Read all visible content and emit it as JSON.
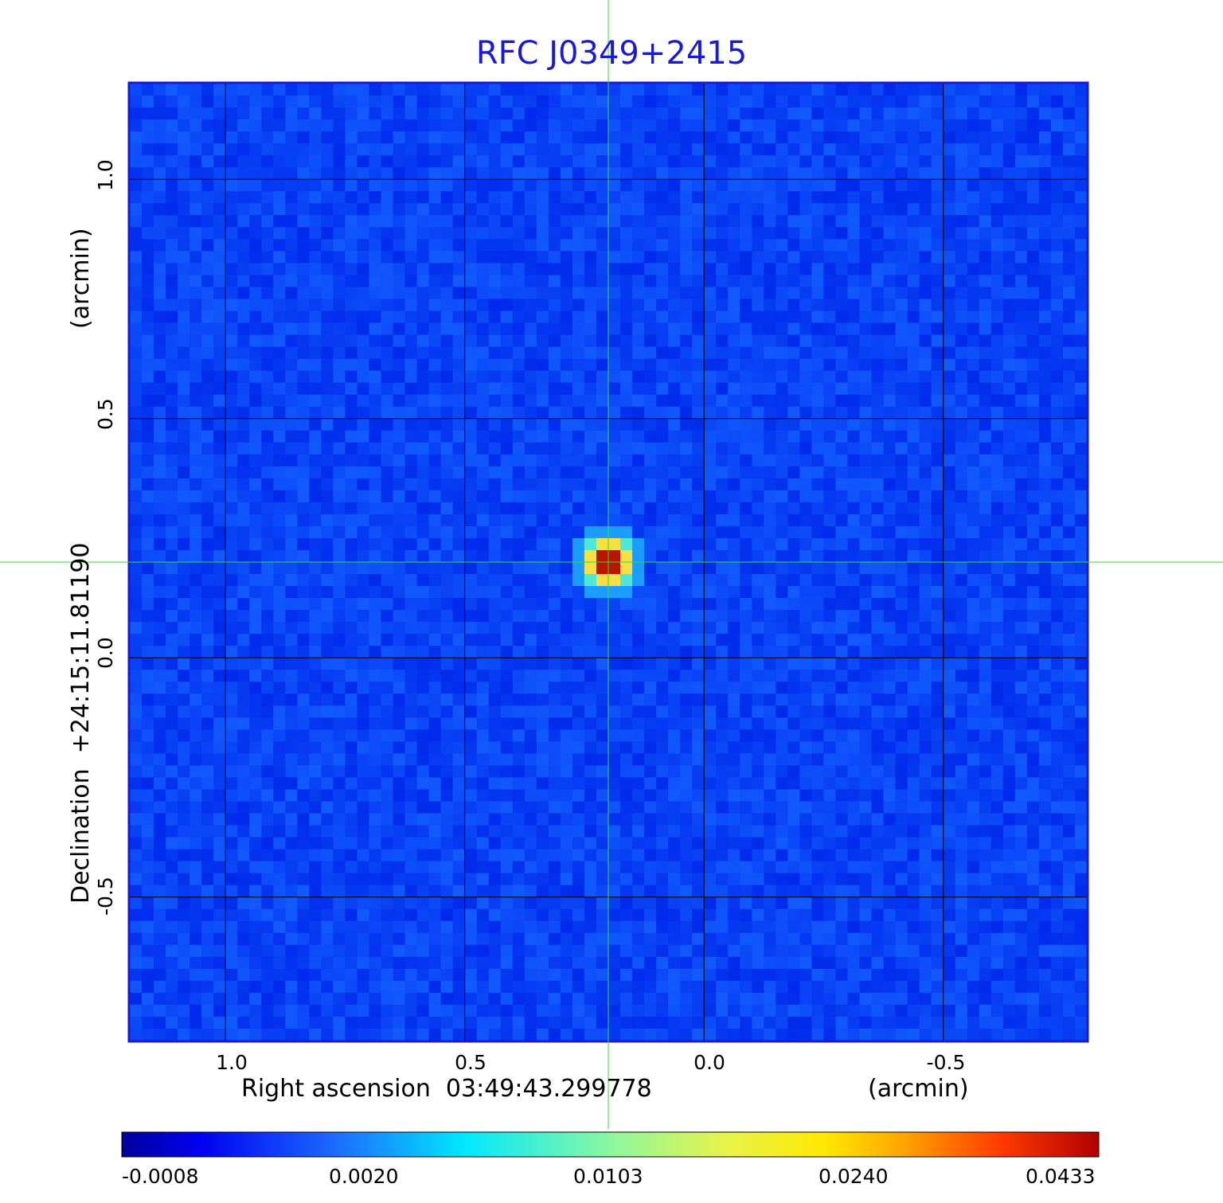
{
  "chart_data": {
    "type": "heatmap",
    "title": "RFC J0349+2415",
    "xlabel": "Right ascension  03:49:43.299778",
    "xlabel_unit": "(arcmin)",
    "ylabel": "Declination  +24:15:11.81190",
    "ylabel_unit": "(arcmin)",
    "x_ticks": [
      "1.0",
      "0.5",
      "0.0",
      "-0.5"
    ],
    "x_tick_values": [
      1.0,
      0.5,
      0.0,
      -0.5
    ],
    "y_ticks": [
      "1.0",
      "0.5",
      "0.0",
      "-0.5"
    ],
    "y_tick_values": [
      1.0,
      0.5,
      0.0,
      -0.5
    ],
    "xlim": [
      1.2,
      -0.8
    ],
    "ylim": [
      -0.8,
      1.2
    ],
    "grid": true,
    "colormap": "jet",
    "colorbar_ticks": [
      "-0.0008",
      "0.0020",
      "0.0103",
      "0.0240",
      "0.0433"
    ],
    "colorbar_range": [
      -0.0008,
      0.0433
    ],
    "source_peak": {
      "x": 0.2,
      "y": 0.2,
      "value": 0.0433
    },
    "crosshair": {
      "x": 0.2,
      "y": 0.2,
      "color": "#33dd33"
    }
  }
}
